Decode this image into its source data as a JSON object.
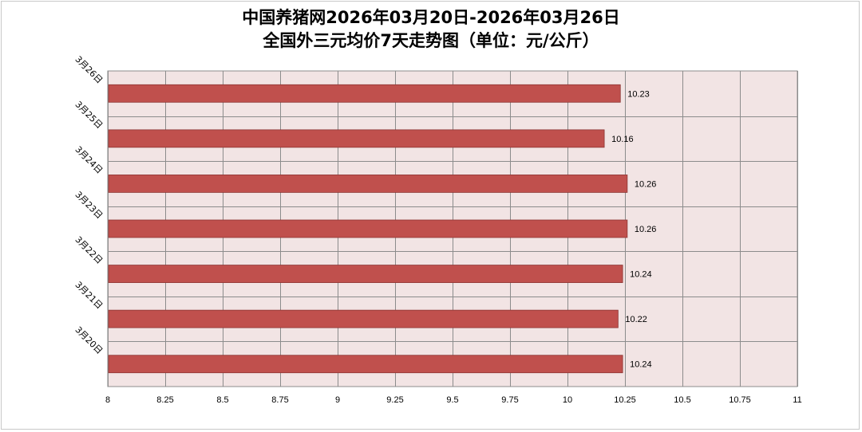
{
  "title": {
    "line1": "中国养猪网2026年03月20日-2026年03月26日",
    "line2": "全国外三元均价7天走势图（单位：元/公斤）"
  },
  "colors": {
    "bar": "#c0504d",
    "bar_edge": "#8c3533",
    "plot_bg": "#f2e4e4",
    "grid": "#8c8c8c"
  },
  "chart_data": {
    "type": "bar",
    "orientation": "horizontal",
    "categories": [
      "3月26日",
      "3月25日",
      "3月24日",
      "3月23日",
      "3月22日",
      "3月21日",
      "3月20日"
    ],
    "values": [
      10.23,
      10.16,
      10.26,
      10.26,
      10.24,
      10.22,
      10.24
    ],
    "data_labels": [
      "10.23",
      "10.16",
      "10.26",
      "10.26",
      "10.24",
      "10.22",
      "10.24"
    ],
    "xlim": [
      8,
      11
    ],
    "xticks": [
      8,
      8.25,
      8.5,
      8.75,
      9,
      9.25,
      9.5,
      9.75,
      10,
      10.25,
      10.5,
      10.75,
      11
    ],
    "xtick_labels": [
      "8",
      "8.25",
      "8.5",
      "8.75",
      "9",
      "9.25",
      "9.5",
      "9.75",
      "10",
      "10.25",
      "10.5",
      "10.75",
      "11"
    ],
    "grid": true,
    "legend": false
  }
}
